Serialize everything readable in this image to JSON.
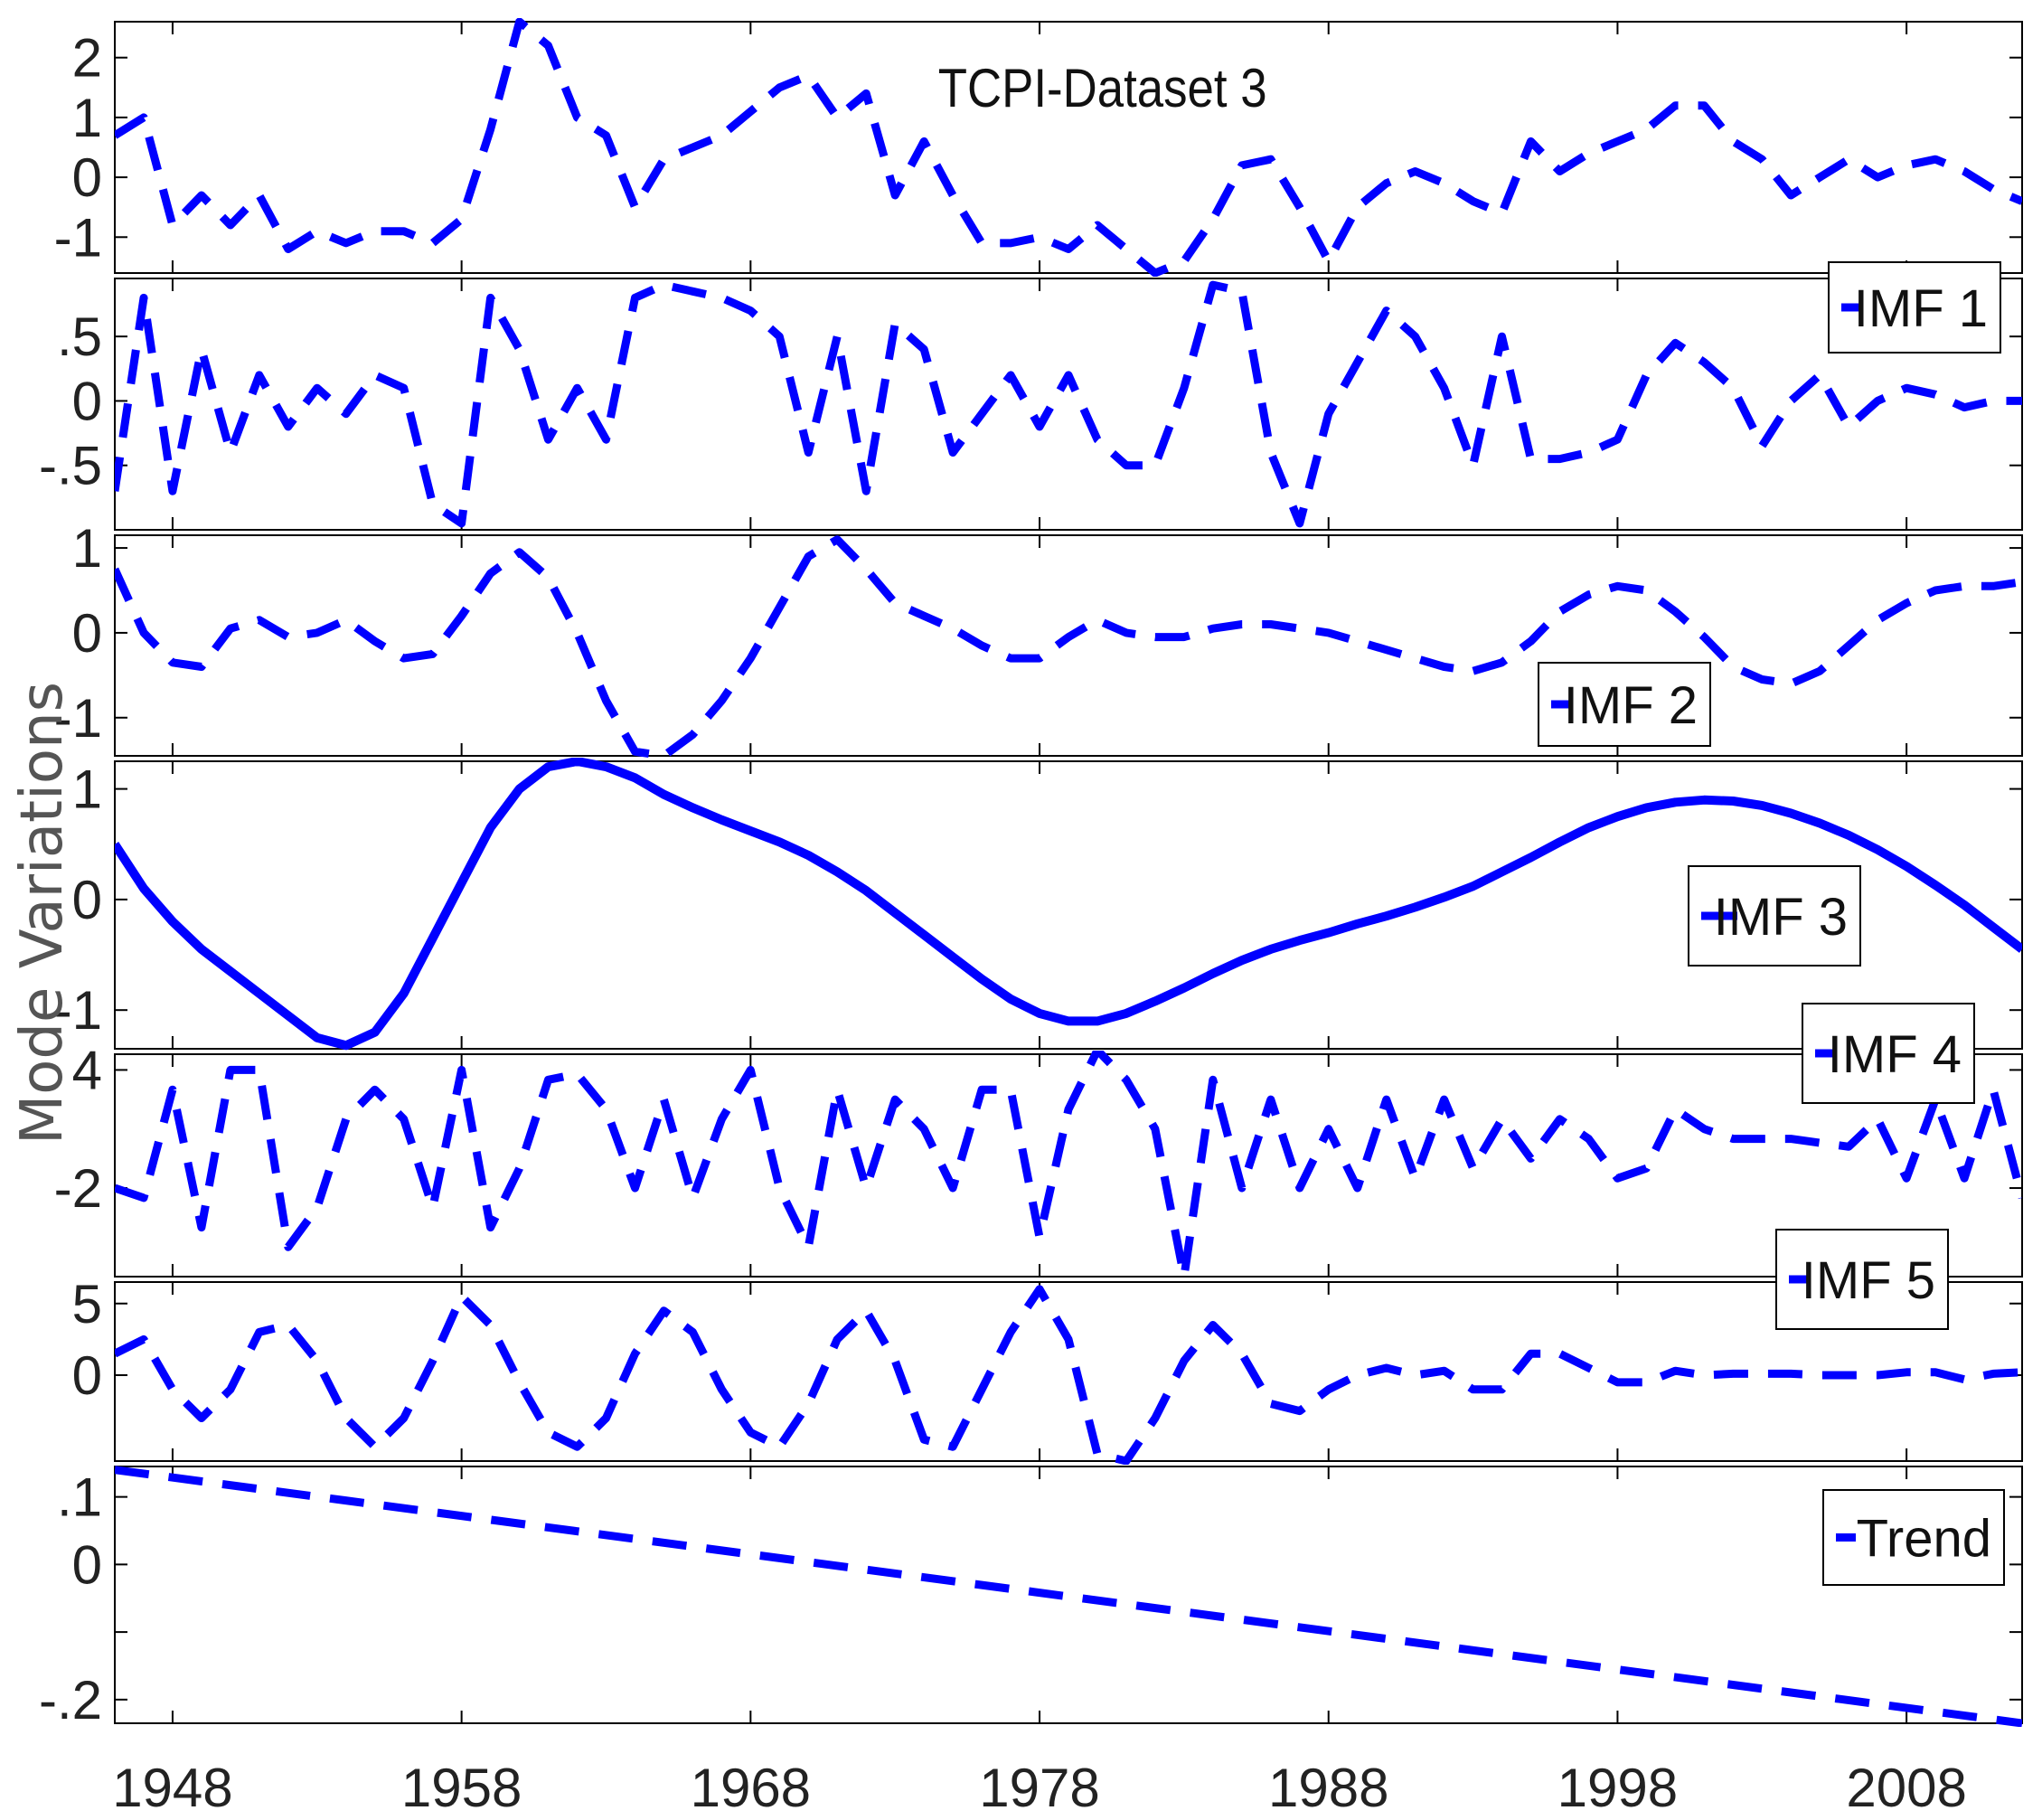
{
  "chart_data": {
    "type": "line",
    "title": "TCPI-Dataset 3",
    "ylabel": "Mode Variations",
    "xlim": [
      1946,
      2012
    ],
    "x_ticks": [
      1948,
      1958,
      1968,
      1978,
      1988,
      1998,
      2008
    ],
    "x_tick_labels": [
      "1948",
      "1958",
      "1968",
      "1978",
      "1988",
      "1998",
      "2008"
    ],
    "color": "#0000ff",
    "panels": [
      {
        "name": "original",
        "legend": "",
        "dashed": true,
        "ylim": [
          -1.6,
          2.6
        ],
        "yticks": [
          -1,
          0,
          1,
          2
        ],
        "ytick_labels": [
          "-1",
          "0",
          "1",
          "2"
        ],
        "x": [
          1946,
          1947,
          1948,
          1949,
          1950,
          1951,
          1952,
          1953,
          1954,
          1955,
          1956,
          1957,
          1958,
          1959,
          1960,
          1961,
          1962,
          1963,
          1964,
          1965,
          1966,
          1967,
          1968,
          1969,
          1970,
          1971,
          1972,
          1973,
          1974,
          1975,
          1976,
          1977,
          1978,
          1979,
          1980,
          1981,
          1982,
          1983,
          1984,
          1985,
          1986,
          1987,
          1988,
          1989,
          1990,
          1991,
          1992,
          1993,
          1994,
          1995,
          1996,
          1997,
          1998,
          1999,
          2000,
          2001,
          2002,
          2003,
          2004,
          2005,
          2006,
          2007,
          2008,
          2009,
          2010,
          2011,
          2012
        ],
        "values": [
          0.7,
          1.0,
          -0.8,
          -0.3,
          -0.8,
          -0.3,
          -1.2,
          -0.9,
          -1.1,
          -0.9,
          -0.9,
          -1.1,
          -0.7,
          0.8,
          2.6,
          2.2,
          1.0,
          0.7,
          -0.5,
          0.3,
          0.5,
          0.7,
          1.1,
          1.5,
          1.7,
          1.0,
          1.4,
          -0.3,
          0.6,
          -0.3,
          -1.1,
          -1.1,
          -1.0,
          -1.2,
          -0.8,
          -1.2,
          -1.6,
          -1.4,
          -0.7,
          0.2,
          0.3,
          -0.5,
          -1.4,
          -0.5,
          -0.1,
          0.1,
          -0.1,
          -0.4,
          -0.6,
          0.6,
          0.1,
          0.4,
          0.6,
          0.8,
          1.2,
          1.2,
          0.6,
          0.3,
          -0.3,
          0.0,
          0.3,
          0.0,
          0.2,
          0.3,
          0.1,
          -0.2,
          -0.4
        ]
      },
      {
        "name": "imf-1",
        "legend": "IMF 1",
        "dashed": true,
        "ylim": [
          -1.0,
          0.95
        ],
        "yticks": [
          -0.5,
          0,
          0.5
        ],
        "ytick_labels": [
          "-.5",
          "0",
          ".5"
        ],
        "x": [
          1946,
          1947,
          1948,
          1949,
          1950,
          1951,
          1952,
          1953,
          1954,
          1955,
          1956,
          1957,
          1958,
          1959,
          1960,
          1961,
          1962,
          1963,
          1964,
          1965,
          1966,
          1967,
          1968,
          1969,
          1970,
          1971,
          1972,
          1973,
          1974,
          1975,
          1976,
          1977,
          1978,
          1979,
          1980,
          1981,
          1982,
          1983,
          1984,
          1985,
          1986,
          1987,
          1988,
          1989,
          1990,
          1991,
          1992,
          1993,
          1994,
          1995,
          1996,
          1997,
          1998,
          1999,
          2000,
          2001,
          2002,
          2003,
          2004,
          2005,
          2006,
          2007,
          2008,
          2009,
          2010,
          2011,
          2012
        ],
        "values": [
          -0.7,
          0.8,
          -0.7,
          0.4,
          -0.4,
          0.2,
          -0.2,
          0.1,
          -0.1,
          0.2,
          0.1,
          -0.8,
          -0.95,
          0.8,
          0.4,
          -0.3,
          0.1,
          -0.3,
          0.8,
          0.9,
          0.85,
          0.8,
          0.7,
          0.5,
          -0.4,
          0.5,
          -0.7,
          0.6,
          0.4,
          -0.4,
          -0.1,
          0.2,
          -0.2,
          0.2,
          -0.3,
          -0.5,
          -0.5,
          0.1,
          0.9,
          0.85,
          -0.4,
          -0.95,
          -0.1,
          0.3,
          0.7,
          0.5,
          0.1,
          -0.5,
          0.5,
          -0.45,
          -0.45,
          -0.4,
          -0.3,
          0.2,
          0.45,
          0.3,
          0.1,
          -0.35,
          0.0,
          0.2,
          -0.2,
          0.0,
          0.1,
          0.05,
          -0.05,
          0.0,
          0.0
        ]
      },
      {
        "name": "imf-2",
        "legend": "IMF 2",
        "dashed": true,
        "ylim": [
          -1.45,
          1.15
        ],
        "yticks": [
          -1,
          0,
          1
        ],
        "ytick_labels": [
          "-1",
          "0",
          "1"
        ],
        "x": [
          1946,
          1947,
          1948,
          1949,
          1950,
          1951,
          1952,
          1953,
          1954,
          1955,
          1956,
          1957,
          1958,
          1959,
          1960,
          1961,
          1962,
          1963,
          1964,
          1965,
          1966,
          1967,
          1968,
          1969,
          1970,
          1971,
          1972,
          1973,
          1974,
          1975,
          1976,
          1977,
          1978,
          1979,
          1980,
          1981,
          1982,
          1983,
          1984,
          1985,
          1986,
          1987,
          1988,
          1989,
          1990,
          1991,
          1992,
          1993,
          1994,
          1995,
          1996,
          1997,
          1998,
          1999,
          2000,
          2001,
          2002,
          2003,
          2004,
          2005,
          2006,
          2007,
          2008,
          2009,
          2010,
          2011,
          2012
        ],
        "values": [
          0.75,
          0.0,
          -0.35,
          -0.4,
          0.05,
          0.15,
          -0.05,
          0.0,
          0.15,
          -0.1,
          -0.3,
          -0.25,
          0.2,
          0.7,
          0.95,
          0.65,
          0.0,
          -0.8,
          -1.4,
          -1.45,
          -1.2,
          -0.8,
          -0.3,
          0.3,
          0.9,
          1.1,
          0.75,
          0.35,
          0.2,
          0.05,
          -0.15,
          -0.3,
          -0.3,
          -0.05,
          0.15,
          0.0,
          -0.05,
          -0.05,
          0.05,
          0.1,
          0.1,
          0.05,
          0.0,
          -0.1,
          -0.2,
          -0.3,
          -0.4,
          -0.45,
          -0.35,
          -0.1,
          0.25,
          0.45,
          0.55,
          0.5,
          0.25,
          -0.05,
          -0.4,
          -0.55,
          -0.6,
          -0.45,
          -0.15,
          0.15,
          0.35,
          0.5,
          0.55,
          0.55,
          0.6
        ]
      },
      {
        "name": "imf-3",
        "legend": "IMF 3",
        "dashed": false,
        "ylim": [
          -1.35,
          1.25
        ],
        "yticks": [
          -1,
          0,
          1
        ],
        "ytick_labels": [
          "-1",
          "0",
          "1"
        ],
        "x": [
          1946,
          1947,
          1948,
          1949,
          1950,
          1951,
          1952,
          1953,
          1954,
          1955,
          1956,
          1957,
          1958,
          1959,
          1960,
          1961,
          1962,
          1963,
          1964,
          1965,
          1966,
          1967,
          1968,
          1969,
          1970,
          1971,
          1972,
          1973,
          1974,
          1975,
          1976,
          1977,
          1978,
          1979,
          1980,
          1981,
          1982,
          1983,
          1984,
          1985,
          1986,
          1987,
          1988,
          1989,
          1990,
          1991,
          1992,
          1993,
          1994,
          1995,
          1996,
          1997,
          1998,
          1999,
          2000,
          2001,
          2002,
          2003,
          2004,
          2005,
          2006,
          2007,
          2008,
          2009,
          2010,
          2011,
          2012
        ],
        "values": [
          0.5,
          0.1,
          -0.2,
          -0.45,
          -0.65,
          -0.85,
          -1.05,
          -1.25,
          -1.32,
          -1.2,
          -0.85,
          -0.35,
          0.15,
          0.65,
          1.0,
          1.2,
          1.25,
          1.2,
          1.1,
          0.95,
          0.83,
          0.72,
          0.62,
          0.52,
          0.4,
          0.25,
          0.08,
          -0.12,
          -0.32,
          -0.52,
          -0.72,
          -0.9,
          -1.03,
          -1.1,
          -1.1,
          -1.03,
          -0.92,
          -0.8,
          -0.67,
          -0.55,
          -0.45,
          -0.37,
          -0.3,
          -0.22,
          -0.15,
          -0.07,
          0.02,
          0.12,
          0.25,
          0.38,
          0.52,
          0.65,
          0.75,
          0.83,
          0.88,
          0.9,
          0.89,
          0.85,
          0.78,
          0.69,
          0.58,
          0.45,
          0.3,
          0.13,
          -0.05,
          -0.25,
          -0.45
        ]
      },
      {
        "name": "imf-4",
        "legend": "IMF 4",
        "dashed": true,
        "ylim": [
          -6.5,
          4.8
        ],
        "yticks": [
          -2,
          4
        ],
        "ytick_labels": [
          "-2",
          "4"
        ],
        "x": [
          1946,
          1947,
          1948,
          1949,
          1950,
          1951,
          1952,
          1953,
          1954,
          1955,
          1956,
          1957,
          1958,
          1959,
          1960,
          1961,
          1962,
          1963,
          1964,
          1965,
          1966,
          1967,
          1968,
          1969,
          1970,
          1971,
          1972,
          1973,
          1974,
          1975,
          1976,
          1977,
          1978,
          1979,
          1980,
          1981,
          1982,
          1983,
          1984,
          1985,
          1986,
          1987,
          1988,
          1989,
          1990,
          1991,
          1992,
          1993,
          1994,
          1995,
          1996,
          1997,
          1998,
          1999,
          2000,
          2001,
          2002,
          2003,
          2004,
          2005,
          2006,
          2007,
          2008,
          2009,
          2010,
          2011,
          2012
        ],
        "values": [
          -2.0,
          -2.5,
          3.0,
          -4.0,
          4.0,
          4.0,
          -5.0,
          -3.0,
          1.5,
          3.0,
          1.5,
          -3.0,
          4.0,
          -4.0,
          -1.0,
          3.5,
          3.8,
          2.0,
          -2.0,
          2.5,
          -2.5,
          1.5,
          4.0,
          -2.0,
          -5.0,
          3.0,
          -2.0,
          2.5,
          1.0,
          -2.0,
          3.0,
          3.0,
          -4.5,
          2.0,
          5.0,
          3.5,
          1.0,
          -6.5,
          3.5,
          -2.0,
          2.5,
          -2.0,
          1.0,
          -2.0,
          2.5,
          -1.5,
          2.5,
          -1.0,
          1.5,
          -0.5,
          1.5,
          0.5,
          -1.5,
          -1.0,
          2.0,
          1.0,
          0.5,
          0.5,
          0.5,
          0.3,
          0.1,
          1.5,
          -1.5,
          2.5,
          -1.5,
          3.0,
          -2.5
        ]
      },
      {
        "name": "imf-5",
        "legend": "IMF 5",
        "dashed": true,
        "ylim": [
          -6.0,
          6.5
        ],
        "yticks": [
          0,
          5
        ],
        "ytick_labels": [
          "0",
          "5"
        ],
        "x": [
          1946,
          1947,
          1948,
          1949,
          1950,
          1951,
          1952,
          1953,
          1954,
          1955,
          1956,
          1957,
          1958,
          1959,
          1960,
          1961,
          1962,
          1963,
          1964,
          1965,
          1966,
          1967,
          1968,
          1969,
          1970,
          1971,
          1972,
          1973,
          1974,
          1975,
          1976,
          1977,
          1978,
          1979,
          1980,
          1981,
          1982,
          1983,
          1984,
          1985,
          1986,
          1987,
          1988,
          1989,
          1990,
          1991,
          1992,
          1993,
          1994,
          1995,
          1996,
          1997,
          1998,
          1999,
          2000,
          2001,
          2002,
          2003,
          2004,
          2005,
          2006,
          2007,
          2008,
          2009,
          2010,
          2011,
          2012
        ],
        "values": [
          1.5,
          2.5,
          -1.0,
          -3.0,
          -1.0,
          3.0,
          3.5,
          1.0,
          -3.0,
          -5.0,
          -3.0,
          1.0,
          5.5,
          3.5,
          -0.5,
          -4.0,
          -5.0,
          -3.0,
          1.5,
          4.5,
          3.0,
          -1.0,
          -4.0,
          -5.0,
          -2.0,
          2.5,
          4.5,
          1.0,
          -4.5,
          -5.0,
          -1.0,
          3.0,
          6.0,
          2.5,
          -5.5,
          -6.0,
          -3.0,
          1.0,
          3.5,
          1.5,
          -2.0,
          -2.5,
          -1.0,
          0.0,
          0.5,
          0.0,
          0.3,
          -1.0,
          -1.0,
          1.5,
          1.5,
          0.5,
          -0.5,
          -0.5,
          0.3,
          0.0,
          0.1,
          0.1,
          0.1,
          0.0,
          0.0,
          0.0,
          0.2,
          0.2,
          -0.3,
          0.1,
          0.2
        ]
      },
      {
        "name": "trend",
        "legend": "Trend",
        "dashed": true,
        "ylim": [
          -0.235,
          0.145
        ],
        "yticks": [
          -0.2,
          -0.1,
          0,
          0.1
        ],
        "ytick_labels": [
          "-.2",
          "",
          "0",
          ".1"
        ],
        "x": [
          1946,
          2012
        ],
        "values": [
          0.14,
          -0.235
        ]
      }
    ]
  }
}
